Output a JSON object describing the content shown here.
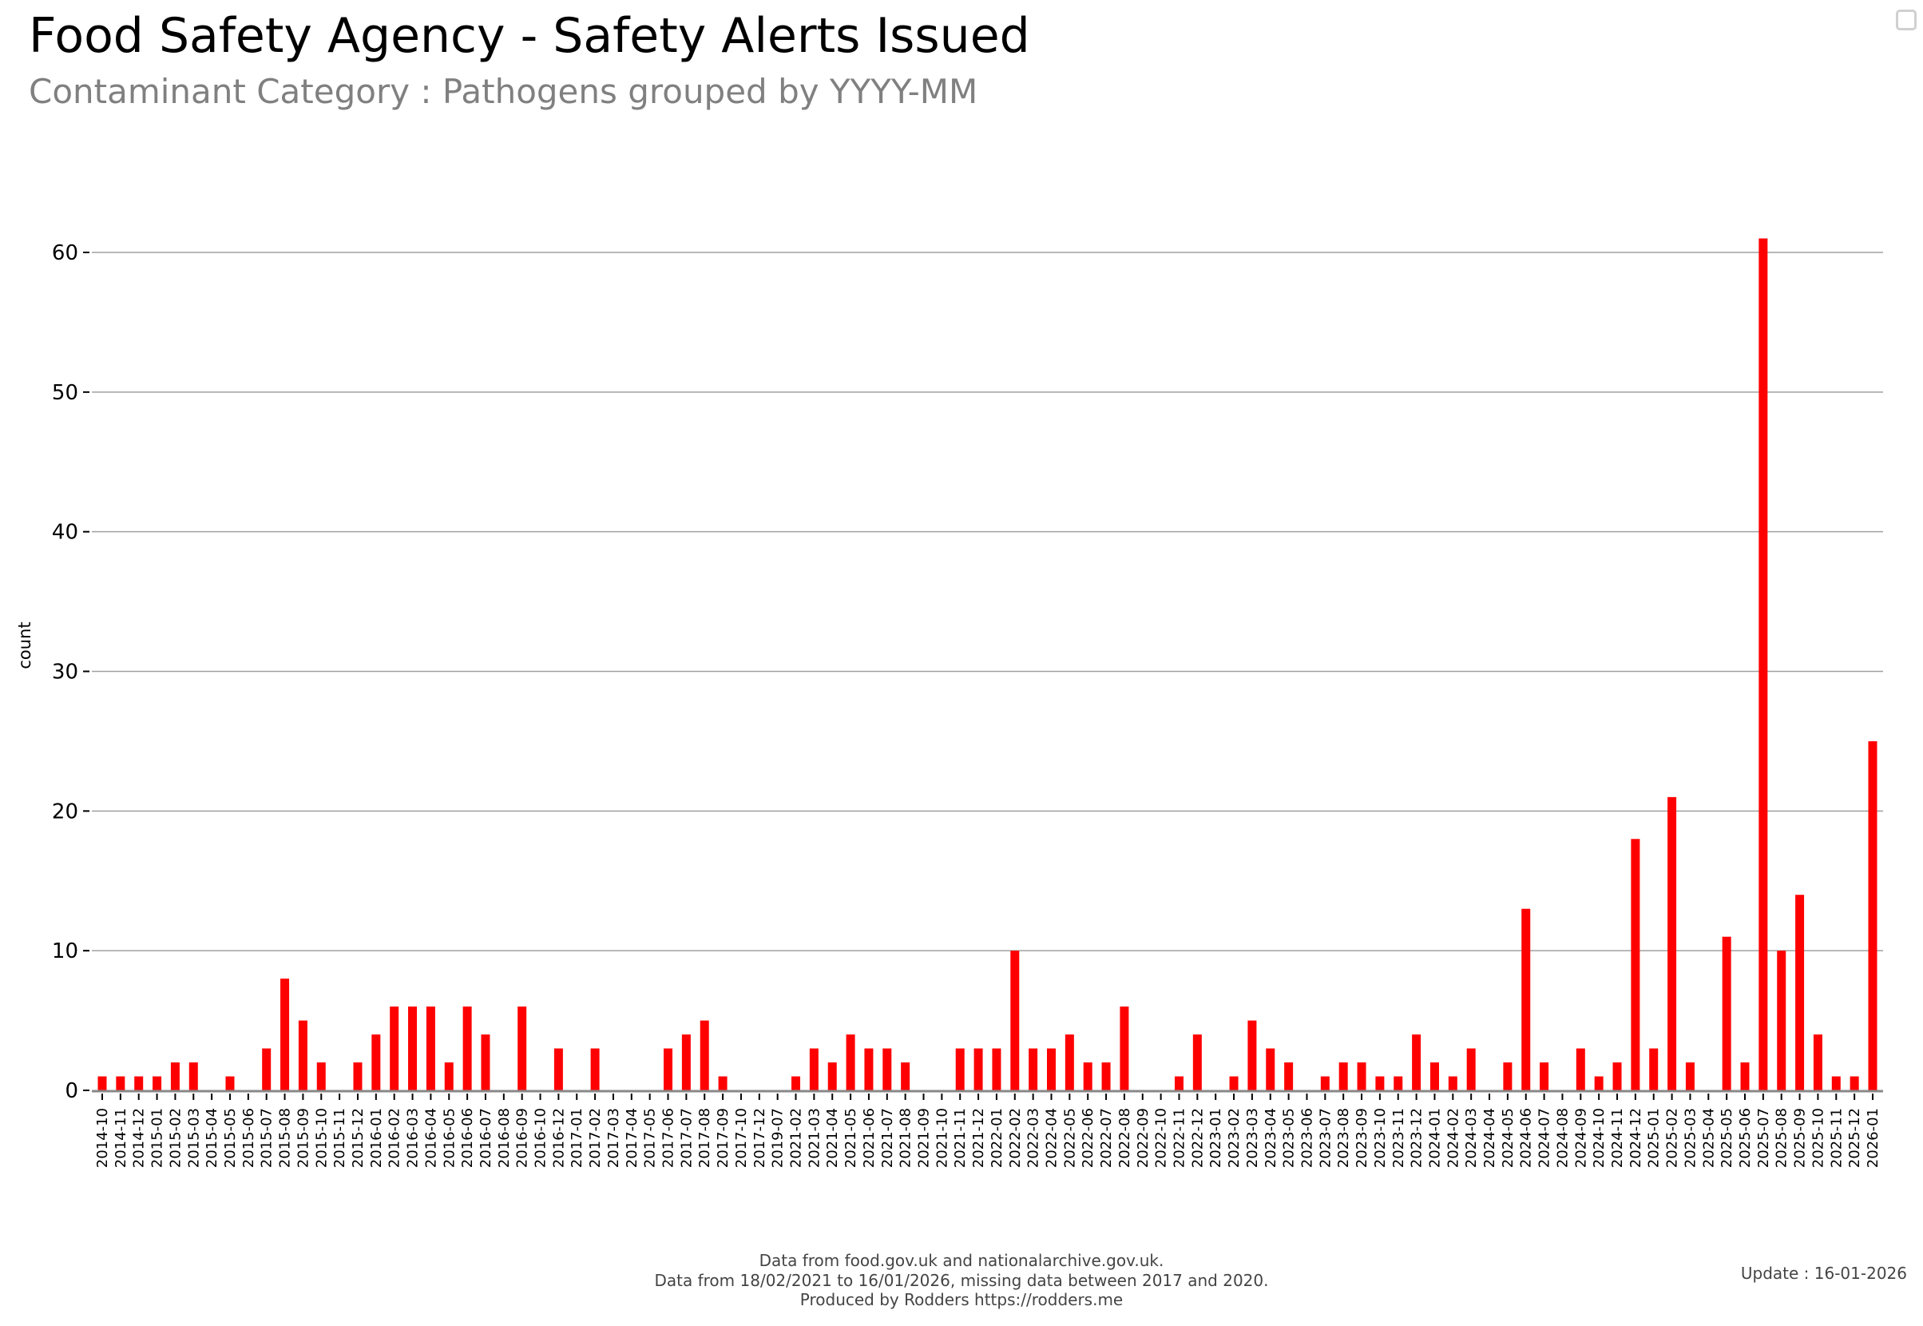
{
  "header": {
    "title": "Food Safety Agency - Safety Alerts Issued",
    "subtitle": "Contaminant Category : Pathogens grouped by YYYY-MM"
  },
  "footer": {
    "line1": "Data from food.gov.uk and nationalarchive.gov.uk.",
    "line2": "Data from 18/02/2021 to 16/01/2026, missing data between 2017 and 2020.",
    "line3": "Produced by Rodders https://rodders.me",
    "update": "Update : 16-01-2026"
  },
  "chart_data": {
    "type": "bar",
    "title": "Food Safety Agency - Safety Alerts Issued",
    "subtitle": "Contaminant Category : Pathogens grouped by YYYY-MM",
    "xlabel": "",
    "ylabel": "count",
    "ylim": [
      0,
      60
    ],
    "yticks": [
      0,
      10,
      20,
      30,
      40,
      50,
      60
    ],
    "grid": "horizontal",
    "bar_color": "#ff0000",
    "categories": [
      "2014-10",
      "2014-11",
      "2014-12",
      "2015-01",
      "2015-02",
      "2015-03",
      "2015-04",
      "2015-05",
      "2015-06",
      "2015-07",
      "2015-08",
      "2015-09",
      "2015-10",
      "2015-11",
      "2015-12",
      "2016-01",
      "2016-02",
      "2016-03",
      "2016-04",
      "2016-05",
      "2016-06",
      "2016-07",
      "2016-08",
      "2016-09",
      "2016-10",
      "2016-12",
      "2017-01",
      "2017-02",
      "2017-03",
      "2017-04",
      "2017-05",
      "2017-06",
      "2017-07",
      "2017-08",
      "2017-09",
      "2017-10",
      "2017-12",
      "2019-07",
      "2021-02",
      "2021-03",
      "2021-04",
      "2021-05",
      "2021-06",
      "2021-07",
      "2021-08",
      "2021-09",
      "2021-10",
      "2021-11",
      "2021-12",
      "2022-01",
      "2022-02",
      "2022-03",
      "2022-04",
      "2022-05",
      "2022-06",
      "2022-07",
      "2022-08",
      "2022-09",
      "2022-10",
      "2022-11",
      "2022-12",
      "2023-01",
      "2023-02",
      "2023-03",
      "2023-04",
      "2023-05",
      "2023-06",
      "2023-07",
      "2023-08",
      "2023-09",
      "2023-10",
      "2023-11",
      "2023-12",
      "2024-01",
      "2024-02",
      "2024-03",
      "2024-04",
      "2024-05",
      "2024-06",
      "2024-07",
      "2024-08",
      "2024-09",
      "2024-10",
      "2024-11",
      "2024-12",
      "2025-01",
      "2025-02",
      "2025-03",
      "2025-04",
      "2025-05",
      "2025-06",
      "2025-07",
      "2025-08",
      "2025-09",
      "2025-10",
      "2025-11",
      "2025-12",
      "2026-01"
    ],
    "values": [
      1,
      1,
      1,
      1,
      2,
      2,
      0,
      1,
      0,
      3,
      8,
      5,
      2,
      0,
      2,
      4,
      6,
      6,
      6,
      2,
      6,
      4,
      0,
      6,
      0,
      3,
      0,
      3,
      0,
      0,
      0,
      3,
      4,
      5,
      1,
      0,
      0,
      0,
      1,
      3,
      2,
      4,
      3,
      3,
      2,
      0,
      0,
      3,
      3,
      3,
      10,
      3,
      3,
      4,
      2,
      2,
      6,
      0,
      0,
      1,
      4,
      0,
      1,
      5,
      3,
      2,
      0,
      1,
      2,
      2,
      1,
      1,
      4,
      2,
      1,
      3,
      0,
      2,
      13,
      2,
      0,
      3,
      1,
      2,
      18,
      3,
      21,
      2,
      0,
      11,
      2,
      61,
      10,
      14,
      4,
      1,
      1,
      25
    ]
  }
}
